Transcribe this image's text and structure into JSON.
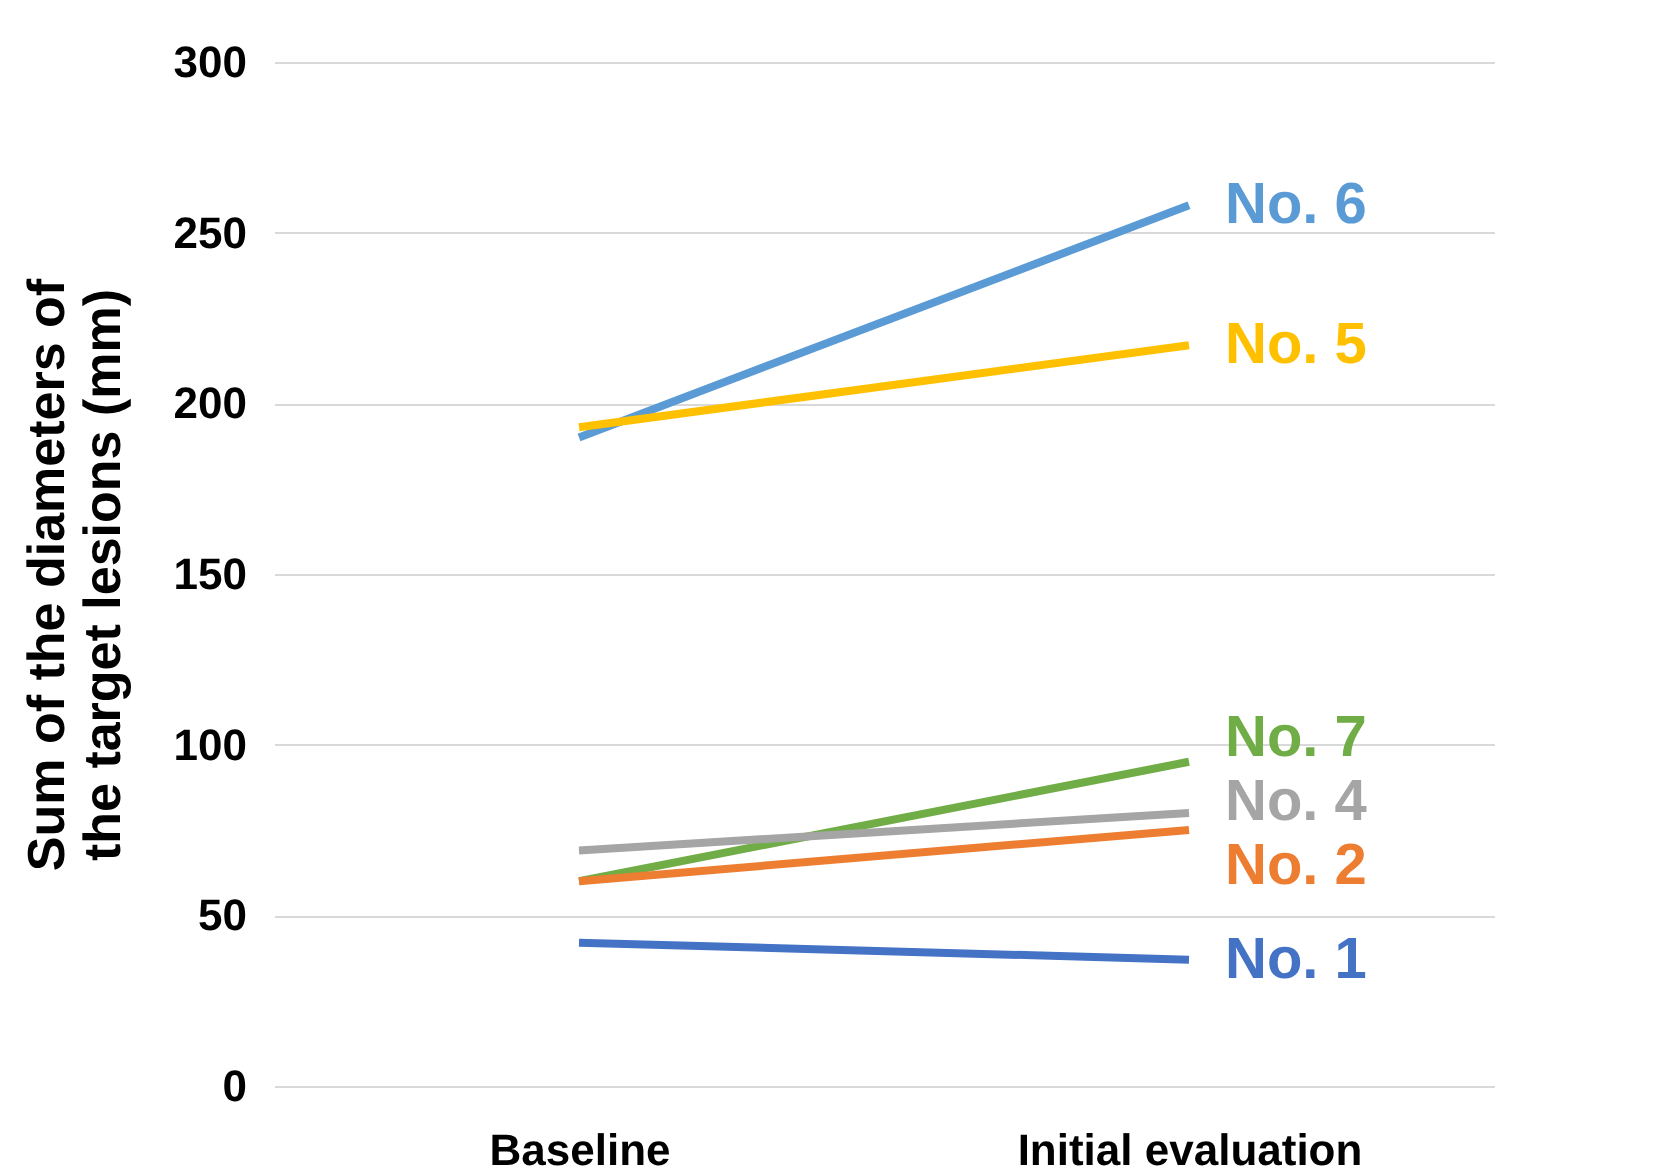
{
  "chart_data": {
    "type": "line",
    "ylabel": "Sum of the diameters of\nthe target lesions (mm)",
    "categories": [
      "Baseline",
      "Initial evaluation"
    ],
    "series": [
      {
        "name": "No. 6",
        "color": "#5b9bd5",
        "values": [
          190,
          258
        ]
      },
      {
        "name": "No. 5",
        "color": "#ffc000",
        "values": [
          193,
          217
        ]
      },
      {
        "name": "No. 7",
        "color": "#70ad47",
        "values": [
          60,
          95
        ]
      },
      {
        "name": "No. 4",
        "color": "#a5a5a5",
        "values": [
          69,
          80
        ]
      },
      {
        "name": "No. 2",
        "color": "#ed7d31",
        "values": [
          60,
          75
        ]
      },
      {
        "name": "No. 1",
        "color": "#4472c4",
        "values": [
          42,
          37
        ]
      }
    ],
    "ylim": [
      0,
      300
    ],
    "yticks": [
      0,
      50,
      100,
      150,
      200,
      250,
      300
    ],
    "grid": "y",
    "legend": false,
    "marker": "none",
    "line_style": "solid"
  }
}
